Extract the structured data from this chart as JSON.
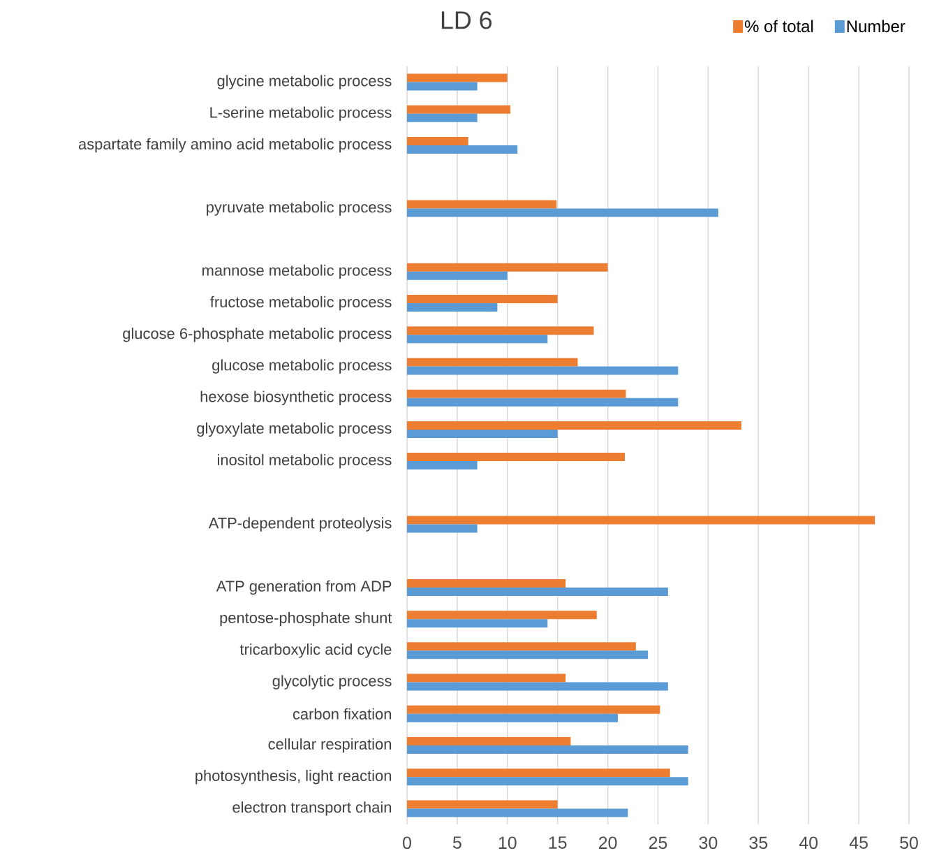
{
  "chart_data": {
    "type": "bar",
    "orientation": "horizontal",
    "title": "LD 6",
    "categories": [
      "glycine metabolic process",
      "L-serine metabolic process",
      "aspartate family amino acid metabolic process",
      null,
      "pyruvate metabolic process",
      null,
      "mannose metabolic process",
      "fructose metabolic process",
      "glucose 6-phosphate metabolic process",
      "glucose metabolic process",
      "hexose biosynthetic process",
      "glyoxylate metabolic process",
      "inositol metabolic process",
      null,
      "ATP-dependent proteolysis",
      null,
      "ATP generation from ADP",
      "pentose-phosphate shunt",
      "tricarboxylic acid cycle",
      "glycolytic process",
      "carbon fixation",
      "cellular respiration",
      "photosynthesis, light reaction",
      "electron transport chain"
    ],
    "series": [
      {
        "name": "% of total",
        "color": "#ed7d31",
        "values": [
          10,
          10.3,
          6.1,
          null,
          14.9,
          null,
          20,
          15,
          18.6,
          17,
          21.8,
          33.3,
          21.7,
          null,
          46.6,
          null,
          15.8,
          18.9,
          22.8,
          15.8,
          25.2,
          16.3,
          26.2,
          15
        ]
      },
      {
        "name": "Number",
        "color": "#5b9bd5",
        "values": [
          7,
          7,
          11,
          null,
          31,
          null,
          10,
          9,
          14,
          27,
          27,
          15,
          7,
          null,
          7,
          null,
          26,
          14,
          24,
          26,
          21,
          28,
          28,
          22
        ]
      }
    ],
    "xlim": [
      0,
      50
    ],
    "xticks": [
      0,
      5,
      10,
      15,
      20,
      25,
      30,
      35,
      40,
      45,
      50
    ],
    "grid": "x",
    "legend": "top right"
  }
}
